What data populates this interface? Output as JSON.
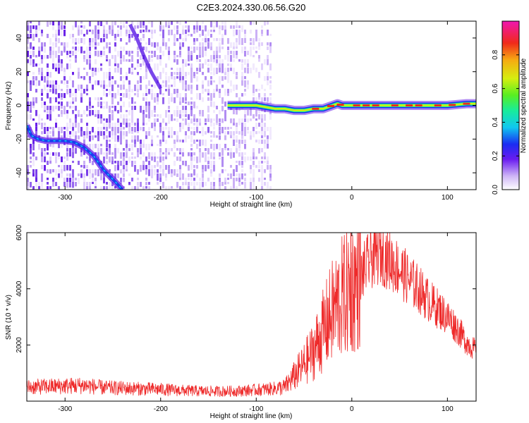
{
  "title": "C2E3.2024.330.06.56.G20",
  "chart_data": [
    {
      "type": "heatmap",
      "xlabel": "Height of straight line (km)",
      "ylabel": "Frequency (Hz)",
      "xlim": [
        -340,
        130
      ],
      "ylim": [
        -50,
        50
      ],
      "xticks": [
        -300,
        -200,
        -100,
        0,
        100
      ],
      "yticks": [
        -40,
        -20,
        0,
        20,
        40
      ],
      "colorbar": {
        "label": "Normalized spectral amplitude",
        "range": [
          0,
          1
        ],
        "ticks": [
          "0.0",
          "0.2",
          "0.4",
          "0.6",
          "0.8"
        ]
      },
      "noise_region_x": [
        -340,
        -85
      ],
      "traces": [
        {
          "name": "descending signal",
          "x": [
            -340,
            -335,
            -328,
            -320,
            -300,
            -290,
            -280,
            -270,
            -260,
            -255,
            -248,
            -240
          ],
          "y": [
            -12,
            -18,
            -20,
            -21,
            -21,
            -22,
            -25,
            -30,
            -38,
            -41,
            -45,
            -50
          ]
        },
        {
          "name": "faint upper trace",
          "x": [
            -232,
            -225,
            -218,
            -210,
            -200
          ],
          "y": [
            48,
            40,
            30,
            20,
            10
          ]
        },
        {
          "name": "main line",
          "x": [
            -130,
            -120,
            -110,
            -100,
            -90,
            -80,
            -70,
            -60,
            -50,
            -40,
            -30,
            -20,
            -15,
            -10,
            0,
            20,
            40,
            60,
            80,
            100,
            120,
            130
          ],
          "y": [
            0,
            0,
            0,
            0,
            -1,
            -2,
            -2,
            -3,
            -3,
            -2,
            -2,
            0,
            1,
            0,
            0,
            0,
            0,
            0,
            0,
            0,
            1,
            1
          ]
        }
      ]
    },
    {
      "type": "line",
      "xlabel": "Height of straight line (km)",
      "ylabel": "SNR (10 * v/v)",
      "xlim": [
        -340,
        130
      ],
      "ylim": [
        0,
        6000
      ],
      "xticks": [
        -300,
        -200,
        -100,
        0,
        100
      ],
      "yticks": [
        2000,
        4000,
        6000
      ],
      "series": [
        {
          "color": "#ee2a2a",
          "x": [
            -340,
            -320,
            -300,
            -280,
            -260,
            -240,
            -220,
            -200,
            -180,
            -160,
            -140,
            -120,
            -100,
            -80,
            -70,
            -60,
            -50,
            -40,
            -30,
            -20,
            -10,
            0,
            10,
            20,
            30,
            40,
            50,
            60,
            70,
            80,
            90,
            100,
            110,
            120,
            130
          ],
          "y": [
            500,
            520,
            540,
            560,
            480,
            460,
            440,
            420,
            380,
            360,
            350,
            360,
            400,
            450,
            500,
            900,
            1300,
            1800,
            2500,
            3200,
            3700,
            4000,
            4500,
            5100,
            5300,
            5000,
            4700,
            4300,
            4000,
            3600,
            3300,
            3000,
            2600,
            2100,
            1800
          ]
        }
      ]
    }
  ]
}
